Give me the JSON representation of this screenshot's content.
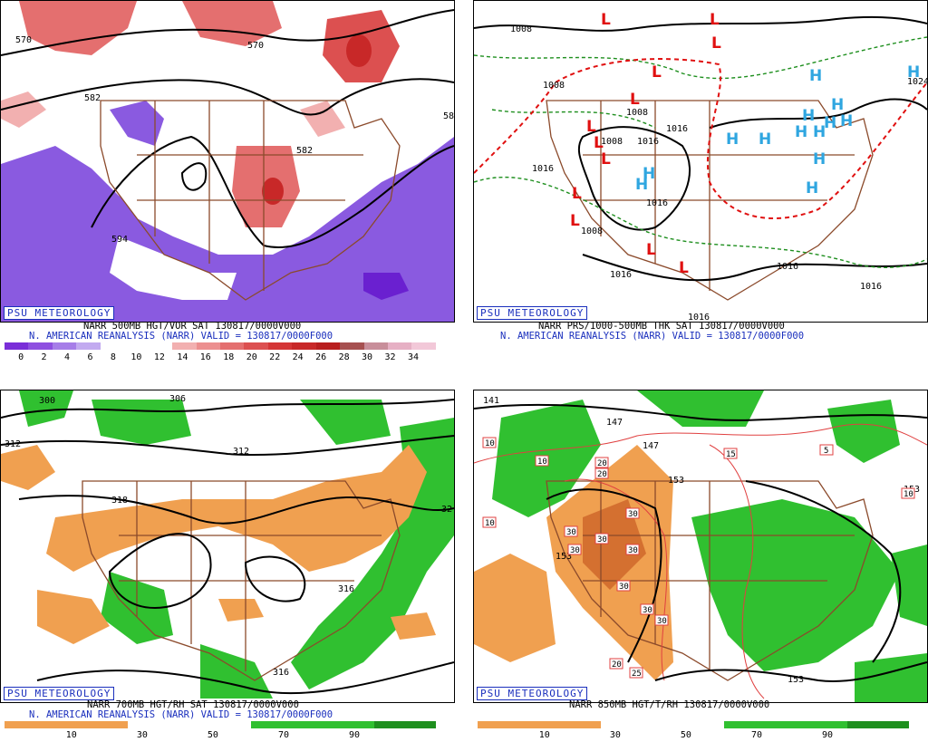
{
  "panels": {
    "p1": {
      "badge": "PSU METEOROLOGY",
      "line1": "NARR 500MB HGT/VOR SAT 130817/0000V000",
      "line2": "N. AMERICAN REANALYSIS (NARR) VALID = 130817/0000F000",
      "contour_labels": [
        "570",
        "570",
        "582",
        "582",
        "58",
        "594"
      ],
      "colorbar_ticks": [
        "0",
        "2",
        "4",
        "6",
        "8",
        "10",
        "12",
        "14",
        "16",
        "18",
        "20",
        "22",
        "24",
        "26",
        "28",
        "30",
        "32",
        "34"
      ]
    },
    "p2": {
      "badge": "PSU METEOROLOGY",
      "line1": "NARR PRS/1000-500MB THK SAT 130817/0000V000",
      "line2": "N. AMERICAN REANALYSIS (NARR) VALID = 130817/0000F000",
      "contour_labels": [
        "1008",
        "1016",
        "1008",
        "1016",
        "1016",
        "1016",
        "1008",
        "1016",
        "1016",
        "1016",
        "1024",
        "1016",
        "1016",
        "1008"
      ],
      "low_symbol": "L",
      "high_symbol": "H"
    },
    "p3": {
      "badge": "PSU METEOROLOGY",
      "line1": "NARR 700MB HGT/RH SAT 130817/0000V000",
      "line2": "N. AMERICAN REANALYSIS (NARR) VALID = 130817/0000F000",
      "contour_labels": [
        "300",
        "306",
        "312",
        "312",
        "318",
        "316",
        "316",
        "32"
      ],
      "colorbar_ticks": [
        "10",
        "30",
        "50",
        "70",
        "90"
      ]
    },
    "p4": {
      "badge": "PSU METEOROLOGY",
      "line1": "NARR 850MB HGT/T/RH 130817/0000V000",
      "contour_labels": [
        "141",
        "147",
        "147",
        "153",
        "153",
        "153",
        "153"
      ],
      "temp_box_labels": [
        "10",
        "10",
        "10",
        "10",
        "10",
        "20",
        "20",
        "20",
        "30",
        "30",
        "30",
        "30",
        "30",
        "30",
        "30",
        "30",
        "15",
        "5",
        "25"
      ],
      "colorbar_ticks": [
        "10",
        "30",
        "50",
        "70",
        "90"
      ]
    }
  },
  "colors": {
    "vort_scale": [
      "#7a2ed8",
      "#8e4fe0",
      "#a67de8",
      "#c2aaf0",
      "#ffffff",
      "#ffffff",
      "#ffffff",
      "#f2b0b0",
      "#ec8f8f",
      "#e46f6f",
      "#dc5050",
      "#d43636",
      "#c82828",
      "#b81e1e",
      "#a65050",
      "#c88e9a",
      "#e6b0c4",
      "#f2c8d8"
    ],
    "rh_scale": [
      "#f0a050",
      "#f0a050",
      "#ffffff",
      "#ffffff",
      "#30c030",
      "#30c030",
      "#1e8f1e"
    ],
    "low": "#e01010",
    "high": "#2fa6e0",
    "geo": "#8b4a2b",
    "badge": "#1a2fbd"
  }
}
